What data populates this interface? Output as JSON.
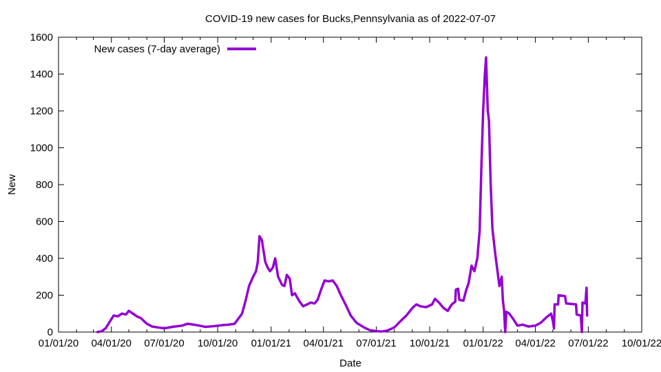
{
  "chart_data": {
    "type": "line",
    "title": "COVID-19 new cases for Bucks,Pennsylvania as of 2022-07-07",
    "xlabel": "Date",
    "ylabel": "New",
    "xlim": [
      "2020-01-01",
      "2022-10-01"
    ],
    "ylim": [
      0,
      1600
    ],
    "x_ticks": [
      "01/01/20",
      "04/01/20",
      "07/01/20",
      "10/01/20",
      "01/01/21",
      "04/01/21",
      "07/01/21",
      "10/01/21",
      "01/01/22",
      "04/01/22",
      "07/01/22",
      "10/01/22"
    ],
    "y_ticks": [
      0,
      200,
      400,
      600,
      800,
      1000,
      1200,
      1400,
      1600
    ],
    "grid": false,
    "legend_position": "top-left",
    "series": [
      {
        "name": "New cases (7-day average)",
        "color": "#9400d3",
        "points": [
          [
            "2020-03-08",
            0
          ],
          [
            "2020-03-15",
            4
          ],
          [
            "2020-03-22",
            20
          ],
          [
            "2020-03-29",
            55
          ],
          [
            "2020-04-05",
            90
          ],
          [
            "2020-04-12",
            85
          ],
          [
            "2020-04-19",
            100
          ],
          [
            "2020-04-26",
            95
          ],
          [
            "2020-05-01",
            115
          ],
          [
            "2020-05-08",
            100
          ],
          [
            "2020-05-15",
            85
          ],
          [
            "2020-05-22",
            75
          ],
          [
            "2020-06-01",
            45
          ],
          [
            "2020-06-10",
            30
          ],
          [
            "2020-06-20",
            25
          ],
          [
            "2020-07-01",
            20
          ],
          [
            "2020-07-15",
            28
          ],
          [
            "2020-08-01",
            35
          ],
          [
            "2020-08-10",
            45
          ],
          [
            "2020-08-25",
            38
          ],
          [
            "2020-09-10",
            28
          ],
          [
            "2020-09-25",
            32
          ],
          [
            "2020-10-10",
            38
          ],
          [
            "2020-10-20",
            40
          ],
          [
            "2020-10-30",
            45
          ],
          [
            "2020-11-05",
            70
          ],
          [
            "2020-11-12",
            100
          ],
          [
            "2020-11-18",
            170
          ],
          [
            "2020-11-24",
            250
          ],
          [
            "2020-12-01",
            300
          ],
          [
            "2020-12-06",
            330
          ],
          [
            "2020-12-09",
            380
          ],
          [
            "2020-12-12",
            520
          ],
          [
            "2020-12-16",
            500
          ],
          [
            "2020-12-22",
            380
          ],
          [
            "2020-12-26",
            350
          ],
          [
            "2020-12-30",
            330
          ],
          [
            "2021-01-04",
            350
          ],
          [
            "2021-01-08",
            400
          ],
          [
            "2021-01-13",
            300
          ],
          [
            "2021-01-20",
            255
          ],
          [
            "2021-01-24",
            250
          ],
          [
            "2021-01-28",
            310
          ],
          [
            "2021-02-02",
            290
          ],
          [
            "2021-02-06",
            200
          ],
          [
            "2021-02-11",
            210
          ],
          [
            "2021-02-18",
            170
          ],
          [
            "2021-02-25",
            140
          ],
          [
            "2021-03-04",
            150
          ],
          [
            "2021-03-10",
            160
          ],
          [
            "2021-03-17",
            155
          ],
          [
            "2021-03-22",
            175
          ],
          [
            "2021-03-28",
            230
          ],
          [
            "2021-04-03",
            280
          ],
          [
            "2021-04-10",
            275
          ],
          [
            "2021-04-17",
            280
          ],
          [
            "2021-04-24",
            250
          ],
          [
            "2021-05-01",
            200
          ],
          [
            "2021-05-09",
            150
          ],
          [
            "2021-05-18",
            90
          ],
          [
            "2021-05-28",
            50
          ],
          [
            "2021-06-10",
            25
          ],
          [
            "2021-06-20",
            10
          ],
          [
            "2021-07-01",
            5
          ],
          [
            "2021-07-10",
            3
          ],
          [
            "2021-07-20",
            8
          ],
          [
            "2021-08-01",
            25
          ],
          [
            "2021-08-12",
            60
          ],
          [
            "2021-08-22",
            90
          ],
          [
            "2021-09-01",
            130
          ],
          [
            "2021-09-08",
            150
          ],
          [
            "2021-09-15",
            140
          ],
          [
            "2021-09-25",
            135
          ],
          [
            "2021-10-05",
            150
          ],
          [
            "2021-10-10",
            180
          ],
          [
            "2021-10-17",
            160
          ],
          [
            "2021-10-25",
            130
          ],
          [
            "2021-11-01",
            115
          ],
          [
            "2021-11-08",
            150
          ],
          [
            "2021-11-14",
            165
          ],
          [
            "2021-11-15",
            230
          ],
          [
            "2021-11-19",
            235
          ],
          [
            "2021-11-21",
            175
          ],
          [
            "2021-11-28",
            170
          ],
          [
            "2021-12-03",
            230
          ],
          [
            "2021-12-07",
            265
          ],
          [
            "2021-12-12",
            360
          ],
          [
            "2021-12-17",
            330
          ],
          [
            "2021-12-22",
            400
          ],
          [
            "2021-12-26",
            550
          ],
          [
            "2021-12-29",
            900
          ],
          [
            "2022-01-01",
            1200
          ],
          [
            "2022-01-04",
            1400
          ],
          [
            "2022-01-06",
            1490
          ],
          [
            "2022-01-09",
            1200
          ],
          [
            "2022-01-11",
            1150
          ],
          [
            "2022-01-14",
            800
          ],
          [
            "2022-01-17",
            560
          ],
          [
            "2022-01-22",
            420
          ],
          [
            "2022-01-29",
            250
          ],
          [
            "2022-02-02",
            300
          ],
          [
            "2022-02-04",
            170
          ],
          [
            "2022-02-06",
            120
          ],
          [
            "2022-02-08",
            0
          ],
          [
            "2022-02-10",
            110
          ],
          [
            "2022-02-15",
            100
          ],
          [
            "2022-02-22",
            70
          ],
          [
            "2022-03-01",
            35
          ],
          [
            "2022-03-10",
            40
          ],
          [
            "2022-03-20",
            30
          ],
          [
            "2022-04-01",
            35
          ],
          [
            "2022-04-10",
            50
          ],
          [
            "2022-04-20",
            80
          ],
          [
            "2022-04-28",
            100
          ],
          [
            "2022-05-01",
            60
          ],
          [
            "2022-05-03",
            20
          ],
          [
            "2022-05-04",
            150
          ],
          [
            "2022-05-10",
            150
          ],
          [
            "2022-05-11",
            200
          ],
          [
            "2022-05-22",
            195
          ],
          [
            "2022-05-24",
            155
          ],
          [
            "2022-06-10",
            150
          ],
          [
            "2022-06-11",
            95
          ],
          [
            "2022-06-18",
            90
          ],
          [
            "2022-06-20",
            0
          ],
          [
            "2022-06-21",
            160
          ],
          [
            "2022-06-26",
            155
          ],
          [
            "2022-06-28",
            240
          ],
          [
            "2022-06-29",
            90
          ]
        ]
      }
    ]
  }
}
